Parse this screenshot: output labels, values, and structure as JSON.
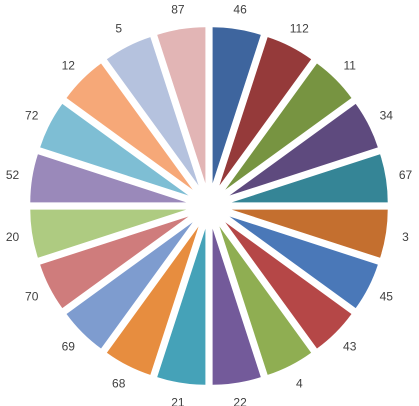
{
  "chart_data": {
    "type": "pie",
    "title": "",
    "legend": "none",
    "exploded": true,
    "start_angle_deg": 0,
    "direction": "clockwise",
    "slices": [
      {
        "label": "46",
        "color": "#3E659E"
      },
      {
        "label": "112",
        "color": "#953A3A"
      },
      {
        "label": "11",
        "color": "#779441"
      },
      {
        "label": "34",
        "color": "#5E4A7E"
      },
      {
        "label": "67",
        "color": "#358596"
      },
      {
        "label": "3",
        "color": "#C46F2F"
      },
      {
        "label": "45",
        "color": "#4A78B8"
      },
      {
        "label": "43",
        "color": "#B54747"
      },
      {
        "label": "4",
        "color": "#8FAE52"
      },
      {
        "label": "22",
        "color": "#735A9A"
      },
      {
        "label": "21",
        "color": "#45A2B8"
      },
      {
        "label": "68",
        "color": "#E78D3F"
      },
      {
        "label": "69",
        "color": "#7E9CCF"
      },
      {
        "label": "70",
        "color": "#CF7C7C"
      },
      {
        "label": "20",
        "color": "#AECB81"
      },
      {
        "label": "52",
        "color": "#9A89BA"
      },
      {
        "label": "72",
        "color": "#7EBED4"
      },
      {
        "label": "12",
        "color": "#F6A878"
      },
      {
        "label": "5",
        "color": "#B5C2DE"
      },
      {
        "label": "87",
        "color": "#E2B5B5"
      }
    ]
  }
}
